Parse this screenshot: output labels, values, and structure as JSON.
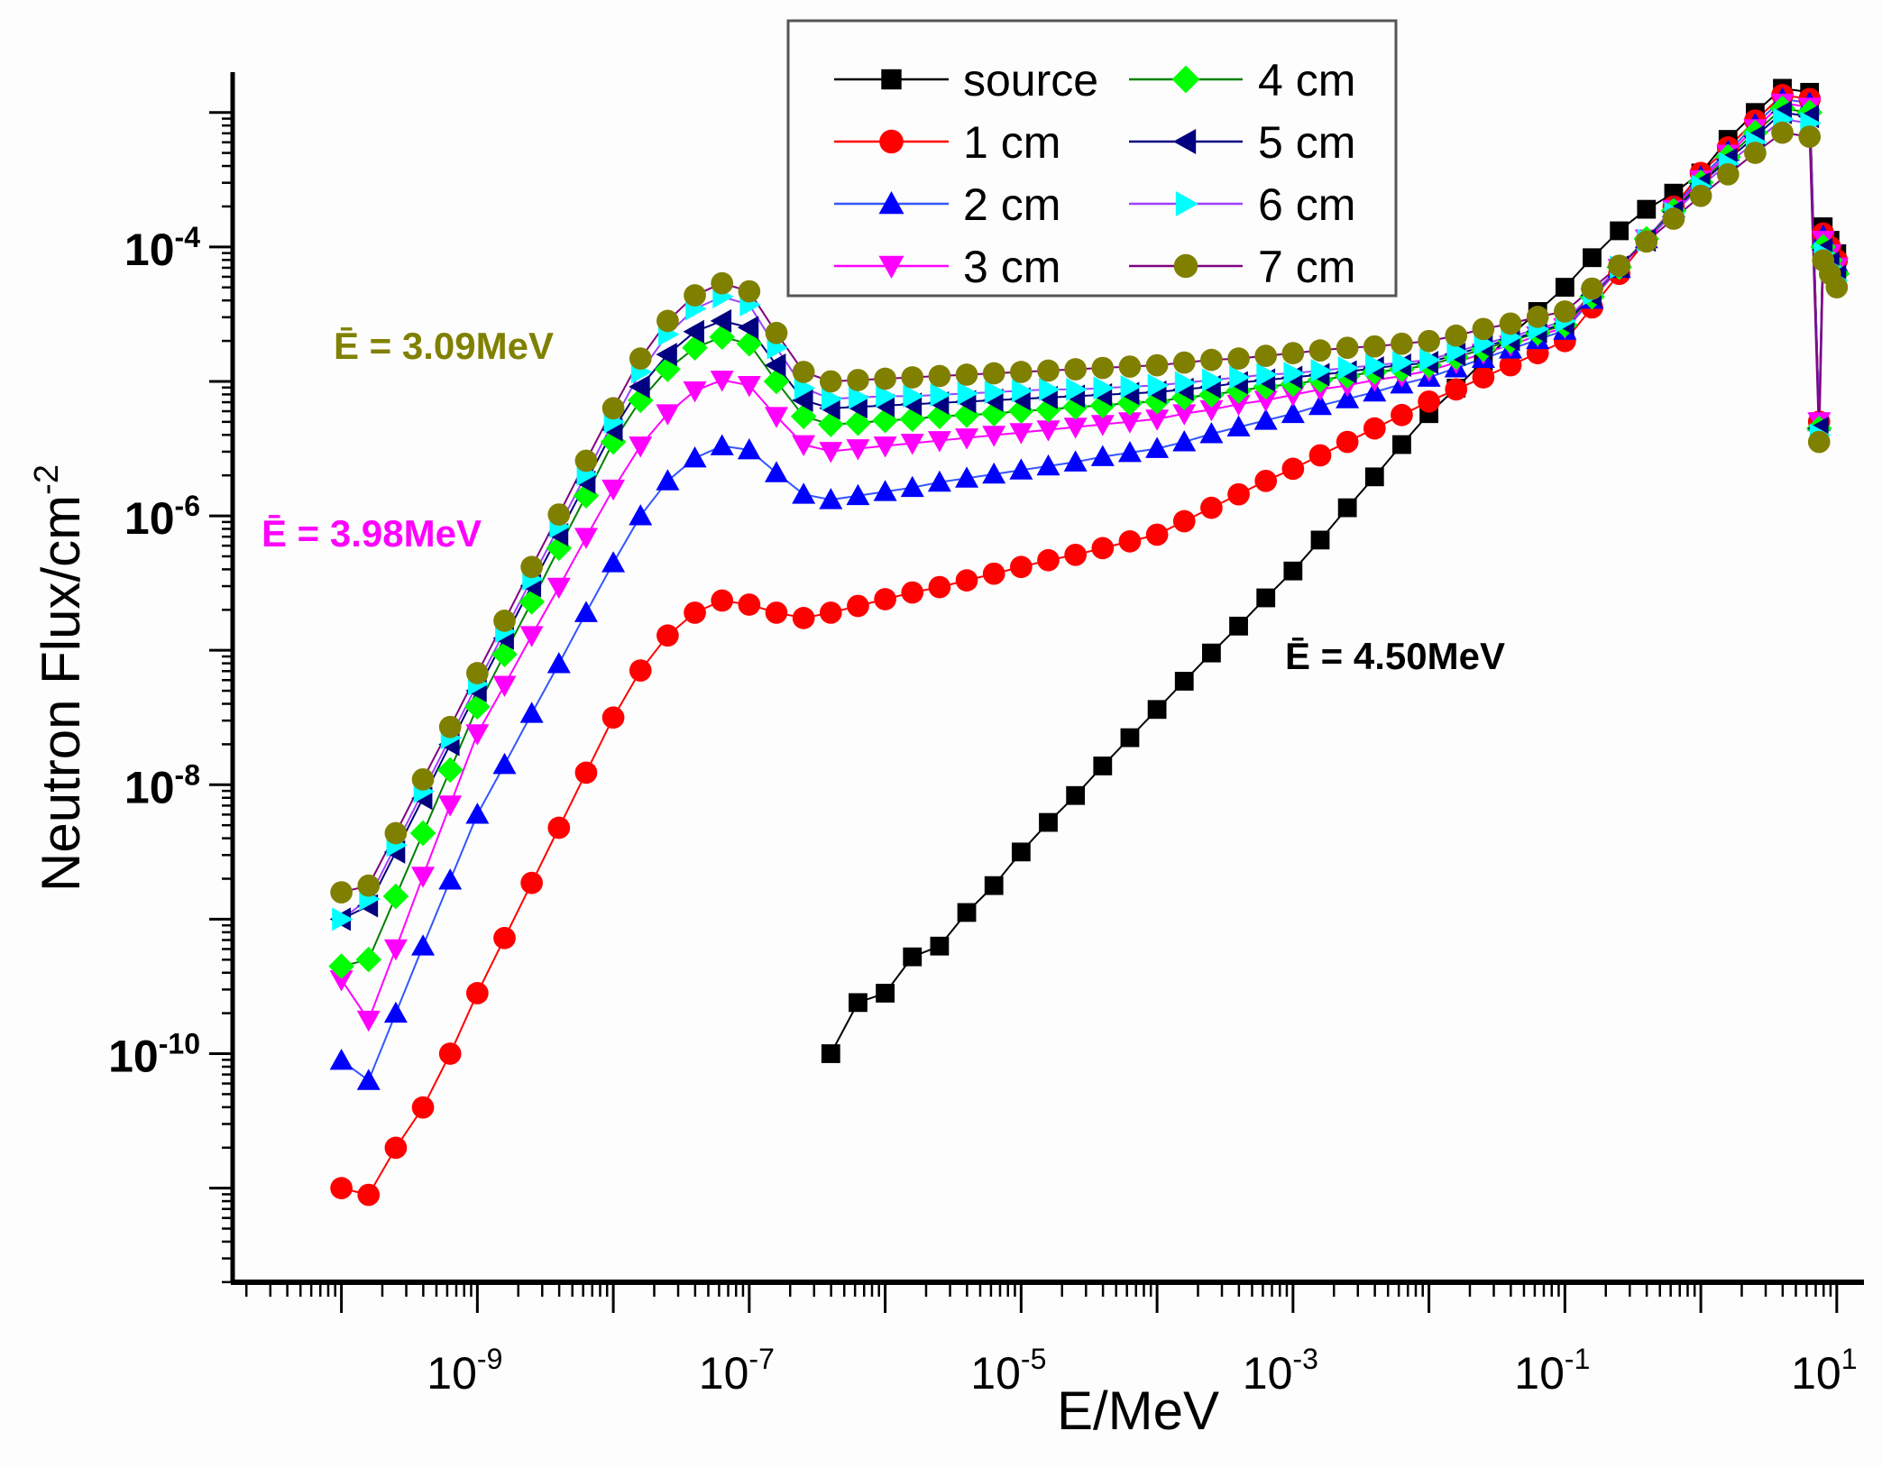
{
  "chart_data": {
    "type": "line",
    "xlabel": "E/MeV",
    "ylabel": "Neutron Flux/cm",
    "ylabel_superscript": "-2",
    "x_scale": "log10",
    "y_scale": "log10",
    "xlim_log10": [
      -10.8,
      1.2
    ],
    "ylim_log10": [
      -11.7,
      -2.7
    ],
    "x_tick_labels": [
      {
        "exp": -9,
        "base": "10",
        "sup": "-9"
      },
      {
        "exp": -7,
        "base": "10",
        "sup": "-7"
      },
      {
        "exp": -5,
        "base": "10",
        "sup": "-5"
      },
      {
        "exp": -3,
        "base": "10",
        "sup": "-3"
      },
      {
        "exp": -1,
        "base": "10",
        "sup": "-1"
      },
      {
        "exp": 1,
        "base": "10",
        "sup": "1"
      }
    ],
    "y_tick_labels": [
      {
        "exp": -4,
        "base": "10",
        "sup": "-4"
      },
      {
        "exp": -6,
        "base": "10",
        "sup": "-6"
      },
      {
        "exp": -8,
        "base": "10",
        "sup": "-8"
      },
      {
        "exp": -10,
        "base": "10",
        "sup": "-10"
      }
    ],
    "grid": false,
    "legend_position": "top-center",
    "x_log10": [
      -10,
      -9.8,
      -9.6,
      -9.4,
      -9.2,
      -9,
      -8.8,
      -8.6,
      -8.4,
      -8.2,
      -8,
      -7.8,
      -7.6,
      -7.4,
      -7.2,
      -7,
      -6.8,
      -6.6,
      -6.4,
      -6.2,
      -6,
      -5.8,
      -5.6,
      -5.4,
      -5.2,
      -5,
      -4.8,
      -4.6,
      -4.4,
      -4.2,
      -4,
      -3.8,
      -3.6,
      -3.4,
      -3.2,
      -3,
      -2.8,
      -2.6,
      -2.4,
      -2.2,
      -2,
      -1.8,
      -1.6,
      -1.4,
      -1.2,
      -1,
      -0.8,
      -0.6,
      -0.4,
      -0.2,
      0,
      0.2,
      0.4,
      0.6,
      0.8,
      0.87,
      0.9,
      0.95,
      1.0
    ],
    "series": [
      {
        "name": "source",
        "color": "#000000",
        "line_color": "#000000",
        "marker": "square",
        "y_log10": [
          null,
          null,
          null,
          null,
          null,
          null,
          null,
          null,
          null,
          null,
          null,
          null,
          null,
          null,
          null,
          null,
          null,
          null,
          -10.0,
          -9.62,
          -9.55,
          -9.28,
          -9.2,
          -8.95,
          -8.75,
          -8.5,
          -8.28,
          -8.08,
          -7.86,
          -7.65,
          -7.44,
          -7.23,
          -7.02,
          -6.82,
          -6.61,
          -6.41,
          -6.18,
          -5.94,
          -5.71,
          -5.47,
          -5.24,
          -5.05,
          -4.85,
          -4.66,
          -4.48,
          -4.3,
          -4.08,
          -3.88,
          -3.72,
          -3.6,
          -3.45,
          -3.2,
          -3.0,
          -2.82,
          -2.85,
          -5.3,
          -3.85,
          -3.95,
          -4.05
        ]
      },
      {
        "name": "1 cm",
        "color": "#ff0000",
        "line_color": "#ff0000",
        "marker": "circle",
        "y_log10": [
          -11.0,
          -11.05,
          -10.7,
          -10.4,
          -10.0,
          -9.55,
          -9.14,
          -8.73,
          -8.32,
          -7.91,
          -7.5,
          -7.15,
          -6.89,
          -6.72,
          -6.63,
          -6.66,
          -6.72,
          -6.76,
          -6.72,
          -6.67,
          -6.62,
          -6.57,
          -6.53,
          -6.48,
          -6.43,
          -6.38,
          -6.33,
          -6.29,
          -6.24,
          -6.19,
          -6.14,
          -6.04,
          -5.94,
          -5.84,
          -5.74,
          -5.65,
          -5.55,
          -5.45,
          -5.35,
          -5.25,
          -5.15,
          -5.06,
          -4.97,
          -4.88,
          -4.79,
          -4.7,
          -4.45,
          -4.2,
          -3.95,
          -3.7,
          -3.45,
          -3.26,
          -3.06,
          -2.87,
          -2.9,
          -5.3,
          -3.9,
          -4.0,
          -4.1
        ]
      },
      {
        "name": "2 cm",
        "color": "#0000ff",
        "line_color": "#3355ff",
        "marker": "triangle-up",
        "y_log10": [
          -10.05,
          -10.2,
          -9.7,
          -9.2,
          -8.71,
          -8.22,
          -7.85,
          -7.47,
          -7.1,
          -6.72,
          -6.35,
          -6.0,
          -5.74,
          -5.57,
          -5.48,
          -5.51,
          -5.68,
          -5.84,
          -5.88,
          -5.85,
          -5.82,
          -5.79,
          -5.75,
          -5.72,
          -5.69,
          -5.66,
          -5.63,
          -5.6,
          -5.56,
          -5.53,
          -5.5,
          -5.45,
          -5.39,
          -5.34,
          -5.29,
          -5.24,
          -5.18,
          -5.13,
          -5.08,
          -5.02,
          -4.97,
          -4.9,
          -4.83,
          -4.76,
          -4.69,
          -4.62,
          -4.39,
          -4.16,
          -3.94,
          -3.71,
          -3.48,
          -3.29,
          -3.09,
          -2.9,
          -2.93,
          -5.3,
          -3.92,
          -4.02,
          -4.12
        ]
      },
      {
        "name": "3 cm",
        "color": "#ff00ff",
        "line_color": "#ff00ff",
        "marker": "triangle-down",
        "y_log10": [
          -9.45,
          -9.75,
          -9.22,
          -8.68,
          -8.15,
          -7.62,
          -7.26,
          -6.89,
          -6.53,
          -6.16,
          -5.8,
          -5.48,
          -5.24,
          -5.07,
          -4.99,
          -5.03,
          -5.26,
          -5.47,
          -5.52,
          -5.5,
          -5.48,
          -5.46,
          -5.44,
          -5.42,
          -5.4,
          -5.38,
          -5.36,
          -5.34,
          -5.32,
          -5.3,
          -5.28,
          -5.24,
          -5.21,
          -5.17,
          -5.14,
          -5.1,
          -5.06,
          -5.03,
          -4.99,
          -4.96,
          -4.92,
          -4.86,
          -4.79,
          -4.73,
          -4.66,
          -4.6,
          -4.38,
          -4.16,
          -3.94,
          -3.72,
          -3.5,
          -3.31,
          -3.12,
          -2.93,
          -2.96,
          -5.3,
          -3.95,
          -4.05,
          -4.15
        ]
      },
      {
        "name": "4 cm",
        "color": "#00ff00",
        "line_color": "#008000",
        "marker": "diamond",
        "y_log10": [
          -9.35,
          -9.3,
          -8.83,
          -8.36,
          -7.89,
          -7.42,
          -7.03,
          -6.64,
          -6.24,
          -5.85,
          -5.45,
          -5.14,
          -4.91,
          -4.75,
          -4.67,
          -4.72,
          -5.0,
          -5.26,
          -5.32,
          -5.31,
          -5.29,
          -5.28,
          -5.26,
          -5.25,
          -5.24,
          -5.22,
          -5.21,
          -5.19,
          -5.18,
          -5.16,
          -5.15,
          -5.12,
          -5.1,
          -5.07,
          -5.04,
          -5.02,
          -4.99,
          -4.96,
          -4.93,
          -4.91,
          -4.88,
          -4.82,
          -4.76,
          -4.7,
          -4.64,
          -4.58,
          -4.37,
          -4.15,
          -3.94,
          -3.73,
          -3.52,
          -3.33,
          -3.15,
          -2.97,
          -3.0,
          -5.35,
          -4.0,
          -4.1,
          -4.2
        ]
      },
      {
        "name": "5 cm",
        "color": "#000080",
        "line_color": "#000080",
        "marker": "triangle-left",
        "y_log10": [
          -9.0,
          -8.9,
          -8.5,
          -8.1,
          -7.7,
          -7.3,
          -6.91,
          -6.52,
          -6.14,
          -5.75,
          -5.36,
          -5.04,
          -4.8,
          -4.63,
          -4.55,
          -4.6,
          -4.88,
          -5.14,
          -5.2,
          -5.19,
          -5.18,
          -5.17,
          -5.16,
          -5.15,
          -5.14,
          -5.13,
          -5.12,
          -5.11,
          -5.1,
          -5.09,
          -5.08,
          -5.06,
          -5.04,
          -5.01,
          -4.99,
          -4.97,
          -4.95,
          -4.93,
          -4.9,
          -4.88,
          -4.86,
          -4.8,
          -4.74,
          -4.69,
          -4.63,
          -4.57,
          -4.36,
          -4.15,
          -3.95,
          -3.74,
          -3.53,
          -3.35,
          -3.18,
          -3.0,
          -3.03,
          -5.35,
          -4.02,
          -4.12,
          -4.22
        ]
      },
      {
        "name": "6 cm",
        "color": "#00ffff",
        "line_color": "#a040ff",
        "marker": "triangle-right",
        "y_log10": [
          -9.0,
          -8.85,
          -8.45,
          -8.05,
          -7.65,
          -7.25,
          -6.86,
          -6.47,
          -6.08,
          -5.69,
          -5.3,
          -4.93,
          -4.65,
          -4.46,
          -4.37,
          -4.43,
          -4.75,
          -5.05,
          -5.13,
          -5.12,
          -5.11,
          -5.11,
          -5.1,
          -5.09,
          -5.08,
          -5.07,
          -5.06,
          -5.06,
          -5.05,
          -5.04,
          -5.03,
          -5.01,
          -4.99,
          -4.97,
          -4.95,
          -4.94,
          -4.92,
          -4.9,
          -4.88,
          -4.86,
          -4.84,
          -4.78,
          -4.72,
          -4.67,
          -4.61,
          -4.55,
          -4.35,
          -4.15,
          -3.95,
          -3.75,
          -3.55,
          -3.38,
          -3.22,
          -3.05,
          -3.08,
          -5.4,
          -4.05,
          -4.15,
          -4.25
        ]
      },
      {
        "name": "7 cm",
        "color": "#808000",
        "line_color": "#800080",
        "marker": "circle",
        "y_log10": [
          -8.8,
          -8.75,
          -8.36,
          -7.96,
          -7.57,
          -7.17,
          -6.78,
          -6.38,
          -5.99,
          -5.59,
          -5.2,
          -4.83,
          -4.55,
          -4.36,
          -4.27,
          -4.33,
          -4.64,
          -4.93,
          -5.0,
          -4.99,
          -4.98,
          -4.97,
          -4.96,
          -4.95,
          -4.94,
          -4.93,
          -4.92,
          -4.91,
          -4.9,
          -4.89,
          -4.88,
          -4.86,
          -4.84,
          -4.83,
          -4.81,
          -4.79,
          -4.77,
          -4.75,
          -4.74,
          -4.72,
          -4.7,
          -4.66,
          -4.61,
          -4.57,
          -4.52,
          -4.48,
          -4.31,
          -4.14,
          -3.96,
          -3.79,
          -3.62,
          -3.46,
          -3.3,
          -3.15,
          -3.18,
          -5.45,
          -4.1,
          -4.2,
          -4.3
        ]
      }
    ],
    "annotations": [
      {
        "text": "Ē = 3.09MeV",
        "color": "#808000"
      },
      {
        "text": "Ē = 3.98MeV",
        "color": "#ff00ff"
      },
      {
        "text": "Ē = 4.50MeV",
        "color": "#000000"
      }
    ]
  }
}
